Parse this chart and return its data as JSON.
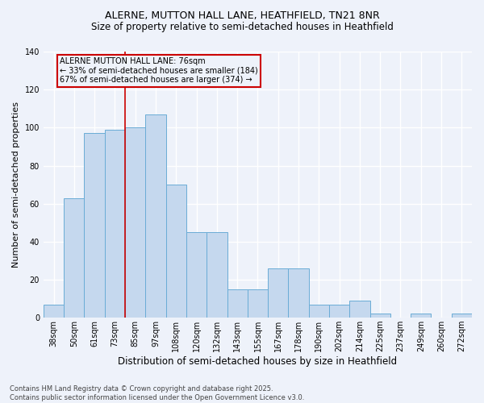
{
  "title_line1": "ALERNE, MUTTON HALL LANE, HEATHFIELD, TN21 8NR",
  "title_line2": "Size of property relative to semi-detached houses in Heathfield",
  "xlabel": "Distribution of semi-detached houses by size in Heathfield",
  "ylabel": "Number of semi-detached properties",
  "categories": [
    "38sqm",
    "50sqm",
    "61sqm",
    "73sqm",
    "85sqm",
    "97sqm",
    "108sqm",
    "120sqm",
    "132sqm",
    "143sqm",
    "155sqm",
    "167sqm",
    "178sqm",
    "190sqm",
    "202sqm",
    "214sqm",
    "225sqm",
    "237sqm",
    "249sqm",
    "260sqm",
    "272sqm"
  ],
  "values": [
    7,
    63,
    97,
    99,
    100,
    107,
    70,
    45,
    45,
    15,
    15,
    26,
    26,
    7,
    7,
    9,
    2,
    0,
    2,
    0,
    2
  ],
  "bar_color": "#c5d8ee",
  "bar_edge_color": "#6aacd6",
  "vline_x": 3.5,
  "vline_color": "#cc0000",
  "annotation_label": "ALERNE MUTTON HALL LANE: 76sqm",
  "pct_smaller": "33% of semi-detached houses are smaller (184)",
  "pct_larger": "67% of semi-detached houses are larger (374)",
  "annotation_box_edgecolor": "#cc0000",
  "background_color": "#eef2fa",
  "grid_color": "#ffffff",
  "footer": "Contains HM Land Registry data © Crown copyright and database right 2025.\nContains public sector information licensed under the Open Government Licence v3.0.",
  "ylim": [
    0,
    140
  ],
  "yticks": [
    0,
    20,
    40,
    60,
    80,
    100,
    120,
    140
  ],
  "title_fontsize": 9,
  "subtitle_fontsize": 8.5,
  "ylabel_fontsize": 8,
  "xlabel_fontsize": 8.5,
  "tick_fontsize": 7,
  "footer_fontsize": 6
}
